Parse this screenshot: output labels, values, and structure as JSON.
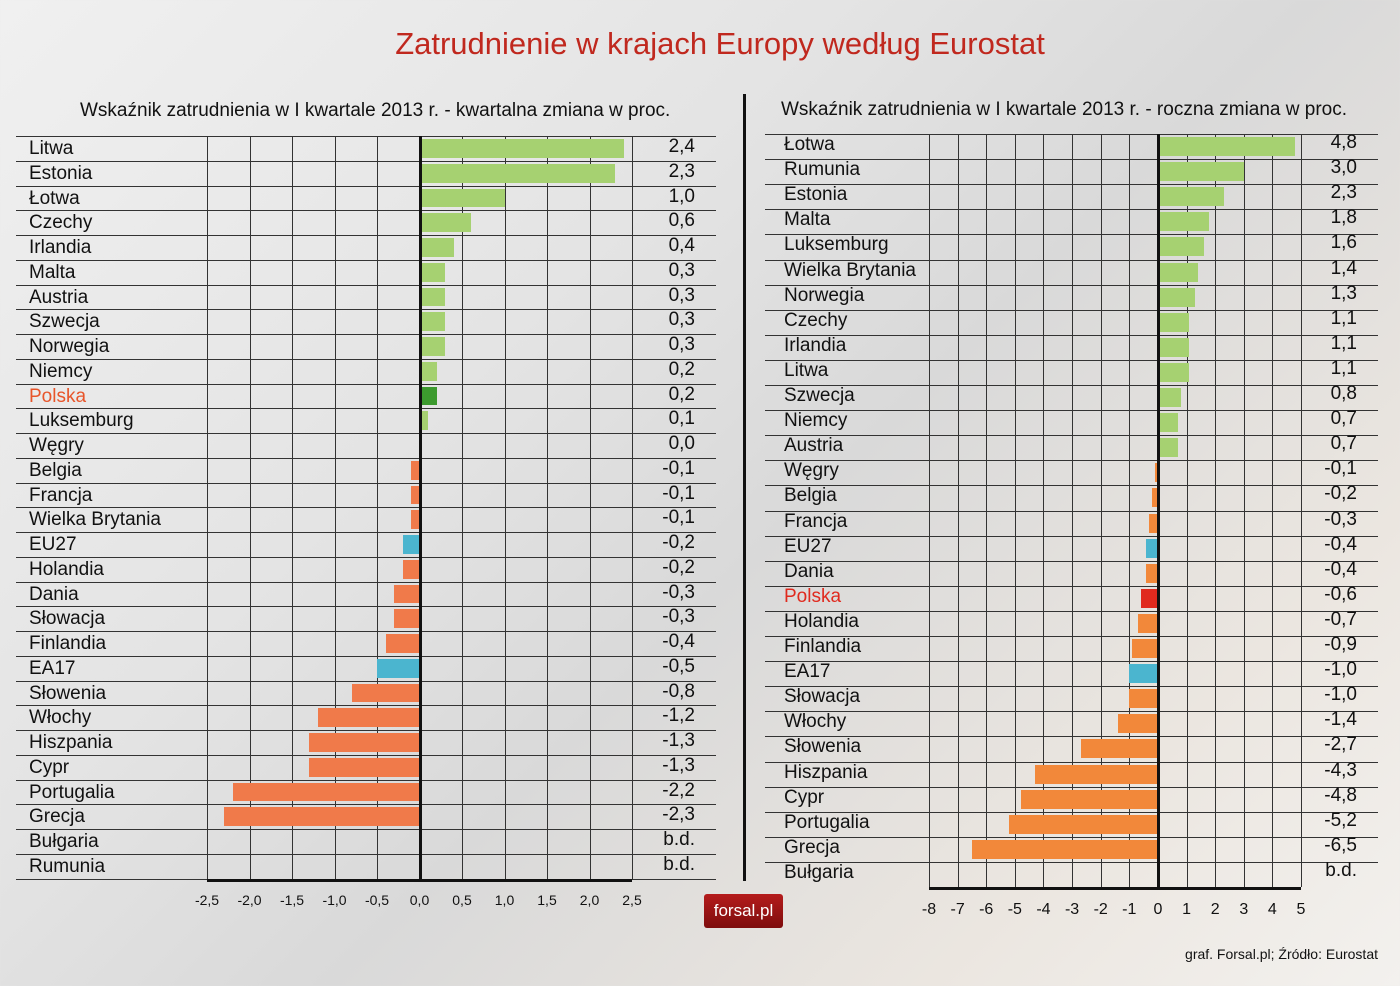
{
  "header": {
    "title": "Zatrudnienie w krajach Europy według Eurostat"
  },
  "footer": {
    "logo": "forsal.pl",
    "source": "graf. Forsal.pl; Źródło: Eurostat"
  },
  "colors": {
    "title": "#c0281e",
    "positive": "#a6d171",
    "poland_positive": "#3c9a2e",
    "negative": "#f07a4a",
    "negative_right": "#f2883a",
    "aggregate": "#4bb5cf",
    "poland_negative": "#e02a1e",
    "poland_label_left": "#e8552a",
    "poland_label_right": "#e02a1e"
  },
  "chart_data": [
    {
      "type": "bar",
      "orientation": "horizontal",
      "title": "Wskaźnik zatrudnienia w I kwartale 2013 r. - kwartalna zmiana w proc.",
      "xlabel": "",
      "ylabel": "",
      "xlim": [
        -2.5,
        2.5
      ],
      "xticks": [
        "-2,5",
        "-2,0",
        "-1,5",
        "-1,0",
        "-0,5",
        "0,0",
        "0,5",
        "1,0",
        "1,5",
        "2,0",
        "2,5"
      ],
      "grid": true,
      "categories": [
        "Litwa",
        "Estonia",
        "Łotwa",
        "Czechy",
        "Irlandia",
        "Malta",
        "Austria",
        "Szwecja",
        "Norwegia",
        "Niemcy",
        "Polska",
        "Luksemburg",
        "Węgry",
        "Belgia",
        "Francja",
        "Wielka Brytania",
        "EU27",
        "Holandia",
        "Dania",
        "Słowacja",
        "Finlandia",
        "EA17",
        "Słowenia",
        "Włochy",
        "Hiszpania",
        "Cypr",
        "Portugalia",
        "Grecja",
        "Bułgaria",
        "Rumunia"
      ],
      "values": [
        2.4,
        2.3,
        1.0,
        0.6,
        0.4,
        0.3,
        0.3,
        0.3,
        0.3,
        0.2,
        0.2,
        0.1,
        0.0,
        -0.1,
        -0.1,
        -0.1,
        -0.2,
        -0.2,
        -0.3,
        -0.3,
        -0.4,
        -0.5,
        -0.8,
        -1.2,
        -1.3,
        -1.3,
        -2.2,
        -2.3,
        null,
        null
      ],
      "value_labels": [
        "2,4",
        "2,3",
        "1,0",
        "0,6",
        "0,4",
        "0,3",
        "0,3",
        "0,3",
        "0,3",
        "0,2",
        "0,2",
        "0,1",
        "0,0",
        "-0,1",
        "-0,1",
        "-0,1",
        "-0,2",
        "-0,2",
        "-0,3",
        "-0,3",
        "-0,4",
        "-0,5",
        "-0,8",
        "-1,2",
        "-1,3",
        "-1,3",
        "-2,2",
        "-2,3",
        "b.d.",
        "b.d."
      ],
      "highlight": {
        "Polska": "poland",
        "EU27": "aggregate",
        "EA17": "aggregate"
      }
    },
    {
      "type": "bar",
      "orientation": "horizontal",
      "title": "Wskaźnik zatrudnienia w I kwartale 2013 r. - roczna zmiana w proc.",
      "xlabel": "",
      "ylabel": "",
      "xlim": [
        -8,
        5
      ],
      "xticks": [
        "-8",
        "-7",
        "-6",
        "-5",
        "-4",
        "-3",
        "-2",
        "-1",
        "0",
        "1",
        "2",
        "3",
        "4",
        "5"
      ],
      "grid": true,
      "categories": [
        "Łotwa",
        "Rumunia",
        "Estonia",
        "Malta",
        "Luksemburg",
        "Wielka Brytania",
        "Norwegia",
        "Czechy",
        "Irlandia",
        "Litwa",
        "Szwecja",
        "Niemcy",
        "Austria",
        "Węgry",
        "Belgia",
        "Francja",
        "EU27",
        "Dania",
        "Polska",
        "Holandia",
        "Finlandia",
        "EA17",
        "Słowacja",
        "Włochy",
        "Słowenia",
        "Hiszpania",
        "Cypr",
        "Portugalia",
        "Grecja",
        "Bułgaria"
      ],
      "values": [
        4.8,
        3.0,
        2.3,
        1.8,
        1.6,
        1.4,
        1.3,
        1.1,
        1.1,
        1.1,
        0.8,
        0.7,
        0.7,
        -0.1,
        -0.2,
        -0.3,
        -0.4,
        -0.4,
        -0.6,
        -0.7,
        -0.9,
        -1.0,
        -1.0,
        -1.4,
        -2.7,
        -4.3,
        -4.8,
        -5.2,
        -6.5,
        null
      ],
      "value_labels": [
        "4,8",
        "3,0",
        "2,3",
        "1,8",
        "1,6",
        "1,4",
        "1,3",
        "1,1",
        "1,1",
        "1,1",
        "0,8",
        "0,7",
        "0,7",
        "-0,1",
        "-0,2",
        "-0,3",
        "-0,4",
        "-0,4",
        "-0,6",
        "-0,7",
        "-0,9",
        "-1,0",
        "-1,0",
        "-1,4",
        "-2,7",
        "-4,3",
        "-4,8",
        "-5,2",
        "-6,5",
        "b.d."
      ],
      "highlight": {
        "Polska": "poland",
        "EU27": "aggregate",
        "EA17": "aggregate"
      }
    }
  ]
}
